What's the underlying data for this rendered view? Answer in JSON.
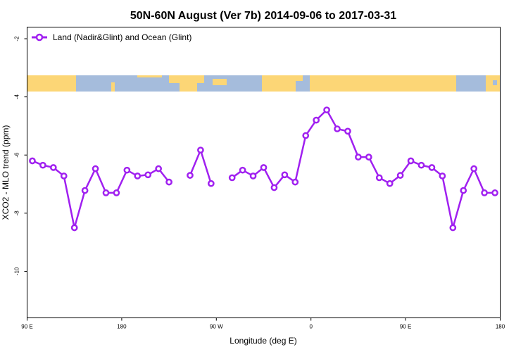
{
  "chart_data": {
    "type": "line",
    "title": "50N-60N August (Ver 7b)   2014-09-06 to 2017-03-31",
    "xlabel": "Longitude (deg E)",
    "ylabel": "XCO2 - MLO trend (ppm)",
    "xlim": [
      90,
      540
    ],
    "ylim": [
      -11.6,
      -1.6
    ],
    "x_ticks": [
      {
        "value": 90,
        "label": "90 E"
      },
      {
        "value": 180,
        "label": "180"
      },
      {
        "value": 270,
        "label": "90 W"
      },
      {
        "value": 360,
        "label": "0"
      },
      {
        "value": 450,
        "label": "90 E"
      },
      {
        "value": 540,
        "label": "180"
      }
    ],
    "y_ticks": [
      {
        "value": -2,
        "label": "-2"
      },
      {
        "value": -4,
        "label": "-4"
      },
      {
        "value": -6,
        "label": "-6"
      },
      {
        "value": -8,
        "label": "-8"
      },
      {
        "value": -10,
        "label": "-10"
      }
    ],
    "legend": {
      "position": "top-left"
    },
    "series": [
      {
        "name": "Land (Nadir&Glint) and Ocean (Glint)",
        "color": "#a020f0",
        "points": [
          [
            95,
            -6.2
          ],
          [
            105,
            -6.35
          ],
          [
            115,
            -6.43
          ],
          [
            125,
            -6.72
          ],
          [
            135,
            -8.5
          ],
          [
            145,
            -7.22
          ],
          [
            155,
            -6.47
          ],
          [
            165,
            -7.3
          ],
          [
            175,
            -7.3
          ],
          [
            185,
            -6.52
          ],
          [
            195,
            -6.72
          ],
          [
            205,
            -6.68
          ],
          [
            215,
            -6.47
          ],
          [
            225,
            -6.93
          ],
          null,
          [
            245,
            -6.7
          ],
          [
            255,
            -5.83
          ],
          [
            265,
            -6.98
          ],
          null,
          [
            285,
            -6.78
          ],
          [
            295,
            -6.52
          ],
          [
            305,
            -6.72
          ],
          [
            315,
            -6.43
          ],
          [
            325,
            -7.12
          ],
          [
            335,
            -6.68
          ],
          [
            345,
            -6.93
          ],
          [
            355,
            -5.33
          ],
          [
            365,
            -4.8
          ],
          [
            375,
            -4.45
          ],
          [
            385,
            -5.1
          ],
          [
            395,
            -5.18
          ],
          [
            405,
            -6.07
          ],
          [
            415,
            -6.07
          ],
          [
            425,
            -6.78
          ],
          [
            435,
            -6.98
          ],
          [
            445,
            -6.7
          ],
          [
            455,
            -6.2
          ],
          [
            465,
            -6.35
          ],
          [
            475,
            -6.43
          ],
          [
            485,
            -6.72
          ],
          [
            495,
            -8.5
          ],
          [
            505,
            -7.22
          ],
          [
            515,
            -6.47
          ],
          [
            525,
            -7.3
          ],
          [
            535,
            -7.3
          ]
        ]
      }
    ],
    "map_strip": {
      "lat_range": "50N-60N",
      "ocean_color": "#a5bcdc",
      "land_color": "#fcd676"
    }
  }
}
